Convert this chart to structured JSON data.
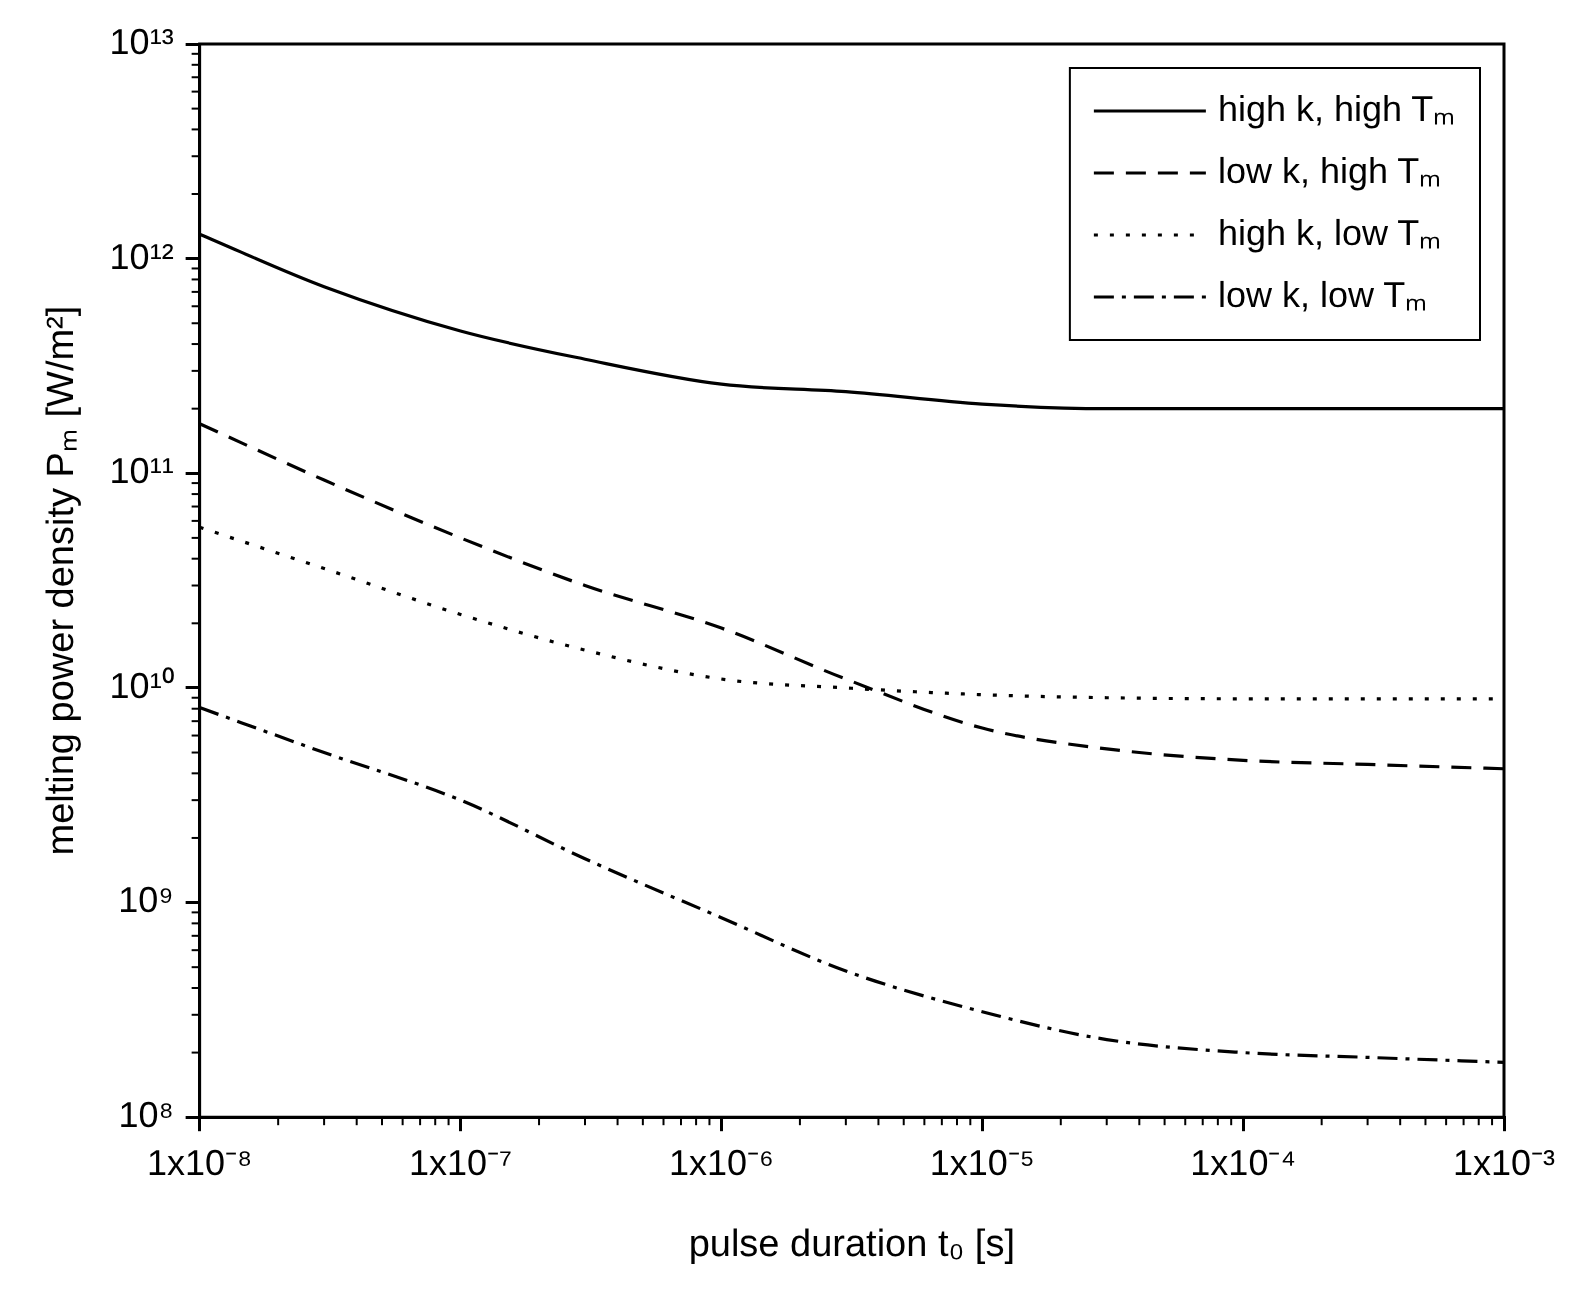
{
  "chart_data": {
    "type": "line",
    "xlabel": "pulse duration t₀ [s]",
    "ylabel": "melting power density Pₘ [W/m²]",
    "x": [
      1e-08,
      3e-08,
      1e-07,
      3e-07,
      1e-06,
      3e-06,
      1e-05,
      3e-05,
      0.0001,
      0.0003,
      0.001
    ],
    "series": [
      {
        "name": "high k, high Tₘ",
        "color": "#000000",
        "line_style": "solid",
        "values": [
          1300000000000.0,
          740000000000.0,
          460000000000.0,
          340000000000.0,
          260000000000.0,
          240000000000.0,
          210000000000.0,
          200000000000.0,
          200000000000.0,
          200000000000.0,
          200000000000.0
        ]
      },
      {
        "name": "low k, high Tₘ",
        "color": "#000000",
        "line_style": "dashed",
        "values": [
          170000000000.0,
          93000000000.0,
          50000000000.0,
          30000000000.0,
          19000000000.0,
          11000000000.0,
          6500000000.0,
          5200000000.0,
          4600000000.0,
          4400000000.0,
          4200000000.0
        ]
      },
      {
        "name": "high k, low Tₘ",
        "color": "#000000",
        "line_style": "dotted",
        "values": [
          56000000000.0,
          36000000000.0,
          22000000000.0,
          15000000000.0,
          11000000000.0,
          10000000000.0,
          9300000000.0,
          9000000000.0,
          8900000000.0,
          8900000000.0,
          8900000000.0
        ]
      },
      {
        "name": "low k, low Tₘ",
        "color": "#000000",
        "line_style": "dashdot",
        "values": [
          8100000000.0,
          5000000000.0,
          3000000000.0,
          1600000000.0,
          850000000.0,
          480000000.0,
          310000000.0,
          230000000.0,
          200000000.0,
          190000000.0,
          180000000.0
        ]
      }
    ],
    "log": "xy",
    "xlim": [
      1e-08,
      0.001
    ],
    "ylim": [
      100000000.0,
      10000000000000.0
    ],
    "xticks": [
      {
        "value": 1e-08,
        "label": "1x10⁻⁸"
      },
      {
        "value": 1e-07,
        "label": "1x10⁻⁷"
      },
      {
        "value": 1e-06,
        "label": "1x10⁻⁶"
      },
      {
        "value": 1e-05,
        "label": "1x10⁻⁵"
      },
      {
        "value": 0.0001,
        "label": "1x10⁻⁴"
      },
      {
        "value": 0.001,
        "label": "1x10⁻³"
      }
    ],
    "yticks": [
      {
        "value": 100000000.0,
        "label": "10⁸"
      },
      {
        "value": 1000000000.0,
        "label": "10⁹"
      },
      {
        "value": 10000000000.0,
        "label": "10¹⁰"
      },
      {
        "value": 100000000000.0,
        "label": "10¹¹"
      },
      {
        "value": 1000000000000.0,
        "label": "10¹²"
      },
      {
        "value": 10000000000000.0,
        "label": "10¹³"
      }
    ],
    "grid": false,
    "legend": "top right",
    "marker": "none"
  }
}
